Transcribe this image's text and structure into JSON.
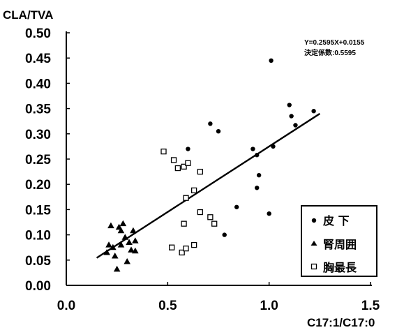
{
  "chart_data": {
    "type": "scatter",
    "title": "",
    "ylabel": "CLA/TVA",
    "xlabel": "C17:1/C17:0",
    "xlim": [
      0.0,
      1.5
    ],
    "ylim": [
      0.0,
      0.5
    ],
    "x_ticks": [
      "0.0",
      "0.5",
      "1.0",
      "1.5"
    ],
    "y_ticks": [
      "0.00",
      "0.05",
      "0.10",
      "0.15",
      "0.20",
      "0.25",
      "0.30",
      "0.35",
      "0.40",
      "0.45",
      "0.50"
    ],
    "grid": false,
    "legend_position": "bottom-right",
    "annotations": {
      "equation": "Y=0.2595X+0.0155",
      "r2": "決定係数:0.5595"
    },
    "trendline": {
      "slope": 0.2595,
      "intercept": 0.0155,
      "x_range": [
        0.15,
        1.25
      ]
    },
    "series": [
      {
        "name": "皮 下",
        "marker": "filled-circle",
        "points": [
          [
            0.6,
            0.27
          ],
          [
            0.71,
            0.32
          ],
          [
            0.75,
            0.305
          ],
          [
            0.78,
            0.1
          ],
          [
            0.84,
            0.155
          ],
          [
            0.92,
            0.27
          ],
          [
            0.94,
            0.258
          ],
          [
            0.94,
            0.193
          ],
          [
            0.95,
            0.218
          ],
          [
            1.0,
            0.142
          ],
          [
            1.01,
            0.445
          ],
          [
            1.02,
            0.275
          ],
          [
            1.1,
            0.357
          ],
          [
            1.11,
            0.335
          ],
          [
            1.13,
            0.317
          ],
          [
            1.22,
            0.345
          ]
        ]
      },
      {
        "name": "腎周囲",
        "marker": "filled-triangle",
        "points": [
          [
            0.2,
            0.065
          ],
          [
            0.21,
            0.08
          ],
          [
            0.22,
            0.118
          ],
          [
            0.23,
            0.075
          ],
          [
            0.24,
            0.058
          ],
          [
            0.25,
            0.032
          ],
          [
            0.26,
            0.115
          ],
          [
            0.27,
            0.108
          ],
          [
            0.27,
            0.08
          ],
          [
            0.28,
            0.122
          ],
          [
            0.29,
            0.095
          ],
          [
            0.3,
            0.047
          ],
          [
            0.31,
            0.085
          ],
          [
            0.32,
            0.07
          ],
          [
            0.33,
            0.108
          ],
          [
            0.34,
            0.088
          ],
          [
            0.34,
            0.068
          ]
        ]
      },
      {
        "name": "胸最長",
        "marker": "open-square",
        "points": [
          [
            0.48,
            0.265
          ],
          [
            0.52,
            0.075
          ],
          [
            0.53,
            0.248
          ],
          [
            0.55,
            0.232
          ],
          [
            0.57,
            0.065
          ],
          [
            0.58,
            0.235
          ],
          [
            0.58,
            0.122
          ],
          [
            0.59,
            0.073
          ],
          [
            0.59,
            0.173
          ],
          [
            0.6,
            0.242
          ],
          [
            0.63,
            0.08
          ],
          [
            0.63,
            0.188
          ],
          [
            0.66,
            0.225
          ],
          [
            0.66,
            0.145
          ],
          [
            0.71,
            0.135
          ],
          [
            0.73,
            0.122
          ]
        ]
      }
    ]
  }
}
